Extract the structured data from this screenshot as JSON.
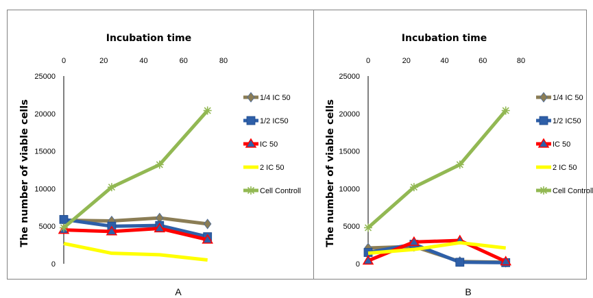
{
  "chart_data": [
    {
      "type": "line",
      "panel_label": "A",
      "title": "Incubation time",
      "ylabel": "The number of viable cells",
      "xlabel": "",
      "x_ticks": [
        0,
        20,
        40,
        60,
        80
      ],
      "y_ticks": [
        0,
        5000,
        10000,
        15000,
        20000,
        25000
      ],
      "xlim": [
        0,
        80
      ],
      "ylim": [
        0,
        25000
      ],
      "x_axis_position": "top",
      "grid": false,
      "legend_position": "right",
      "x": [
        0,
        24,
        48,
        72
      ],
      "series": [
        {
          "name": "1/4 IC 50",
          "color": "#8B7D55",
          "marker": "diamond",
          "values": [
            5800,
            5700,
            6100,
            5300
          ]
        },
        {
          "name": "1/2 IC50",
          "color": "#2E5FA8",
          "marker": "square",
          "values": [
            5900,
            5000,
            5100,
            3600
          ]
        },
        {
          "name": "IC 50",
          "color": "#FF0000",
          "marker": "triangle",
          "values": [
            4500,
            4300,
            4700,
            3200
          ]
        },
        {
          "name": "2 IC 50",
          "color": "#FFFF00",
          "marker": "none",
          "values": [
            2700,
            1400,
            1200,
            500
          ]
        },
        {
          "name": "Cell Controll",
          "color": "#92B853",
          "marker": "star",
          "values": [
            4800,
            10200,
            13200,
            20400
          ]
        }
      ]
    },
    {
      "type": "line",
      "panel_label": "B",
      "title": "Incubation time",
      "ylabel": "The number of viable cells",
      "xlabel": "",
      "x_ticks": [
        0,
        20,
        40,
        60,
        80
      ],
      "y_ticks": [
        0,
        5000,
        10000,
        15000,
        20000,
        25000
      ],
      "xlim": [
        0,
        80
      ],
      "ylim": [
        0,
        25000
      ],
      "x_axis_position": "top",
      "grid": false,
      "legend_position": "right",
      "x": [
        0,
        24,
        48,
        72
      ],
      "series": [
        {
          "name": "1/4 IC 50",
          "color": "#8B7D55",
          "marker": "diamond",
          "values": [
            2100,
            2300,
            300,
            200
          ]
        },
        {
          "name": "1/2 IC50",
          "color": "#2E5FA8",
          "marker": "square",
          "values": [
            1500,
            2600,
            200,
            150
          ]
        },
        {
          "name": "IC 50",
          "color": "#FF0000",
          "marker": "triangle",
          "values": [
            400,
            2900,
            3100,
            300
          ]
        },
        {
          "name": "2 IC 50",
          "color": "#FFFF00",
          "marker": "none",
          "values": [
            1400,
            1900,
            2800,
            2100
          ]
        },
        {
          "name": "Cell Controll",
          "color": "#92B853",
          "marker": "star",
          "values": [
            4800,
            10200,
            13200,
            20400
          ]
        }
      ]
    }
  ]
}
